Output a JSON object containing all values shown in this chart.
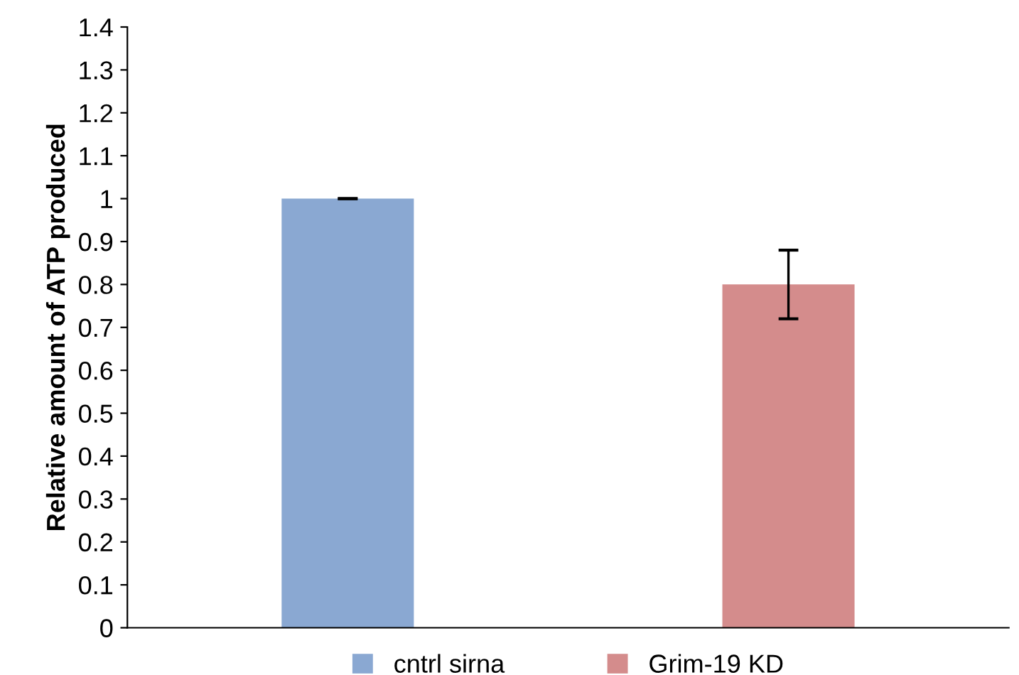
{
  "chart_data": {
    "type": "bar",
    "ylabel": "Relative amount of ATP produced",
    "categories": [
      null,
      null
    ],
    "series": [
      {
        "name": "cntrl sirna",
        "color": "#8aa8d2",
        "values": [
          1,
          null
        ],
        "errors": [
          0,
          null
        ]
      },
      {
        "name": "Grim-19 KD",
        "color": "#d48c8c",
        "values": [
          null,
          0.8
        ],
        "errors": [
          null,
          0.08
        ]
      }
    ],
    "ylim": [
      0,
      1.4
    ],
    "yticks": [
      0,
      0.1,
      0.2,
      0.3,
      0.4,
      0.5,
      0.6,
      0.7,
      0.8,
      0.9,
      1,
      1.1,
      1.2,
      1.3,
      1.4
    ],
    "grid": false,
    "legend": "bottom"
  }
}
